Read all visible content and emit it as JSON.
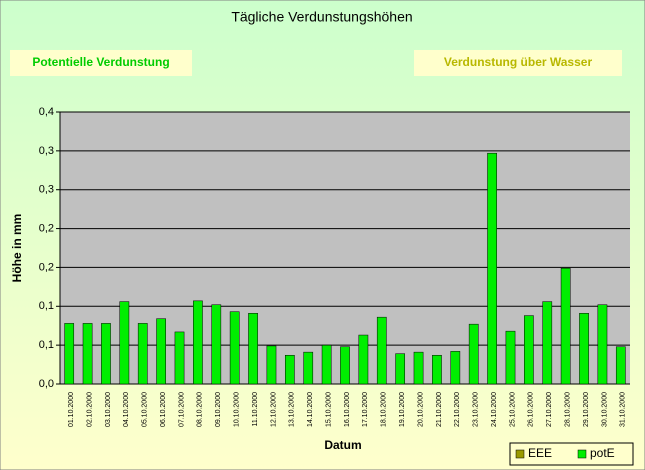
{
  "chart_data": {
    "type": "bar",
    "title": "Tägliche Verdunstungshöhen",
    "buttons": [
      "Potentielle Verdunstung",
      "Verdunstung über Wasser"
    ],
    "y_label": "Höhe in mm",
    "x_label": "Datum",
    "categories": [
      "01.10.2000",
      "02.10.2000",
      "03.10.2000",
      "04.10.2000",
      "05.10.2000",
      "06.10.2000",
      "07.10.2000",
      "08.10.2000",
      "09.10.2000",
      "10.10.2000",
      "11.10.2000",
      "12.10.2000",
      "13.10.2000",
      "14.10.2000",
      "15.10.2000",
      "16.10.2000",
      "17.10.2000",
      "18.10.2000",
      "19.10.2000",
      "20.10.2000",
      "21.10.2000",
      "22.10.2000",
      "23.10.2000",
      "24.10.2000",
      "25.10.2000",
      "26.10.2000",
      "27.10.2000",
      "28.10.2000",
      "29.10.2000",
      "30.10.2000",
      "31.10.2000"
    ],
    "series": [
      {
        "name": "EEE",
        "color": "#999900",
        "values": [
          null,
          null,
          null,
          null,
          null,
          null,
          null,
          null,
          null,
          null,
          null,
          null,
          null,
          null,
          null,
          null,
          null,
          null,
          null,
          null,
          null,
          null,
          null,
          null,
          null,
          null,
          null,
          null,
          null,
          null,
          null
        ]
      },
      {
        "name": "potE",
        "color": "#00ee00",
        "values": [
          0.078,
          0.078,
          0.078,
          0.106,
          0.078,
          0.084,
          0.067,
          0.107,
          0.102,
          0.093,
          0.091,
          0.049,
          0.037,
          0.041,
          0.05,
          0.048,
          0.063,
          0.086,
          0.039,
          0.041,
          0.037,
          0.042,
          0.077,
          0.297,
          0.068,
          0.088,
          0.106,
          0.149,
          0.091,
          0.102,
          0.048
        ]
      }
    ],
    "ylim": [
      0,
      0.35
    ],
    "yticks": [
      {
        "value": 0,
        "label": "0,0"
      },
      {
        "value": 0.05,
        "label": "0,1"
      },
      {
        "value": 0.1,
        "label": "0,1"
      },
      {
        "value": 0.15,
        "label": "0,2"
      },
      {
        "value": 0.2,
        "label": "0,2"
      },
      {
        "value": 0.25,
        "label": "0,3"
      },
      {
        "value": 0.3,
        "label": "0,3"
      },
      {
        "value": 0.35,
        "label": "0,4"
      }
    ],
    "grid": true,
    "legend": "bottom-right"
  }
}
